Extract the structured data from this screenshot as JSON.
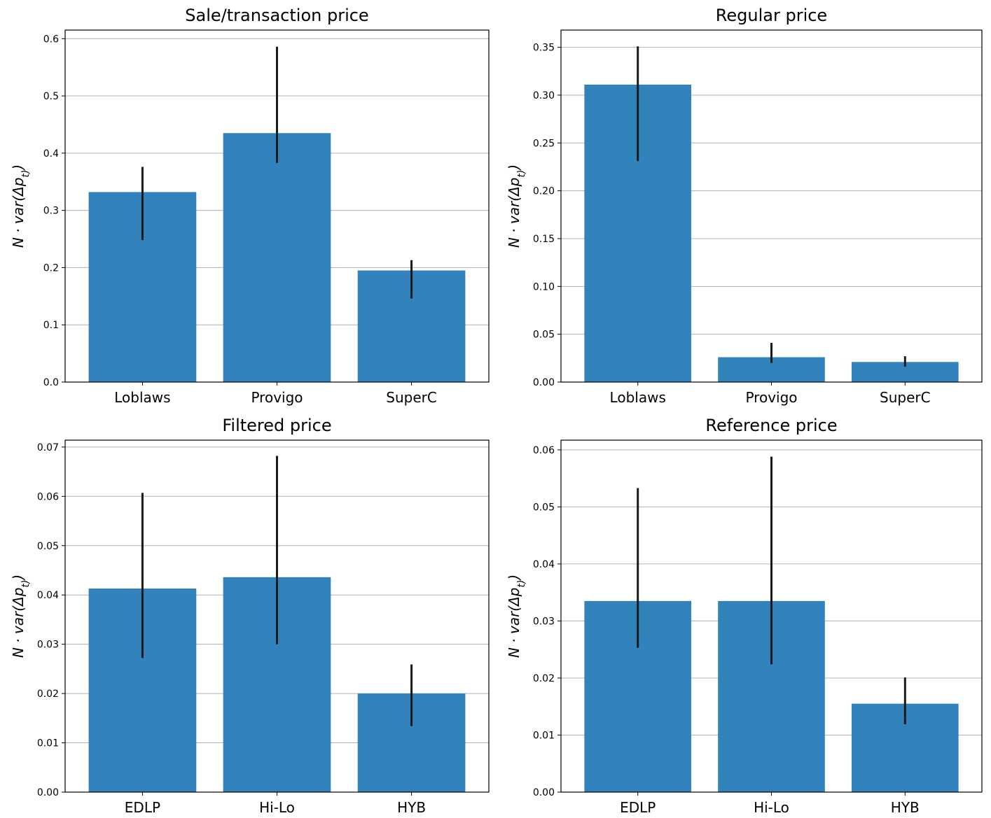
{
  "chart_data": [
    {
      "type": "bar",
      "title": "Sale/transaction price",
      "ylabel": "N · var(Δp_t)",
      "categories": [
        "Loblaws",
        "Provigo",
        "SuperC"
      ],
      "values": [
        0.332,
        0.435,
        0.195
      ],
      "error_low": [
        0.248,
        0.383,
        0.146
      ],
      "error_high": [
        0.376,
        0.586,
        0.213
      ],
      "ylim": [
        0,
        0.615
      ],
      "yticks": [
        0.0,
        0.1,
        0.2,
        0.3,
        0.4,
        0.5,
        0.6
      ],
      "ytick_labels": [
        "0.0",
        "0.1",
        "0.2",
        "0.3",
        "0.4",
        "0.5",
        "0.6"
      ],
      "grid": "y"
    },
    {
      "type": "bar",
      "title": "Regular price",
      "ylabel": "N · var(Δp_t)",
      "categories": [
        "Loblaws",
        "Provigo",
        "SuperC"
      ],
      "values": [
        0.311,
        0.026,
        0.021
      ],
      "error_low": [
        0.231,
        0.02,
        0.016
      ],
      "error_high": [
        0.351,
        0.041,
        0.027
      ],
      "ylim": [
        0,
        0.368
      ],
      "yticks": [
        0.0,
        0.05,
        0.1,
        0.15,
        0.2,
        0.25,
        0.3,
        0.35
      ],
      "ytick_labels": [
        "0.00",
        "0.05",
        "0.10",
        "0.15",
        "0.20",
        "0.25",
        "0.30",
        "0.35"
      ],
      "grid": "y"
    },
    {
      "type": "bar",
      "title": "Filtered price",
      "ylabel": "N · var(Δp_t)",
      "categories": [
        "EDLP",
        "Hi-Lo",
        "HYB"
      ],
      "values": [
        0.0413,
        0.0436,
        0.02
      ],
      "error_low": [
        0.0272,
        0.03,
        0.0134
      ],
      "error_high": [
        0.0607,
        0.0682,
        0.0259
      ],
      "ylim": [
        0,
        0.0714
      ],
      "yticks": [
        0.0,
        0.01,
        0.02,
        0.03,
        0.04,
        0.05,
        0.06,
        0.07
      ],
      "ytick_labels": [
        "0.00",
        "0.01",
        "0.02",
        "0.03",
        "0.04",
        "0.05",
        "0.06",
        "0.07"
      ],
      "grid": "y"
    },
    {
      "type": "bar",
      "title": "Reference price",
      "ylabel": "N · var(Δp_t)",
      "categories": [
        "EDLP",
        "Hi-Lo",
        "HYB"
      ],
      "values": [
        0.0335,
        0.0335,
        0.0155
      ],
      "error_low": [
        0.0253,
        0.0224,
        0.0119
      ],
      "error_high": [
        0.0533,
        0.0588,
        0.0201
      ],
      "ylim": [
        0,
        0.0617
      ],
      "yticks": [
        0.0,
        0.01,
        0.02,
        0.03,
        0.04,
        0.05,
        0.06
      ],
      "ytick_labels": [
        "0.00",
        "0.01",
        "0.02",
        "0.03",
        "0.04",
        "0.05",
        "0.06"
      ],
      "grid": "y"
    }
  ],
  "colors": {
    "bar": "#3283bb",
    "errorbar": "#1a1a1a",
    "grid": "#b0b0b0",
    "axes": "#000000"
  }
}
